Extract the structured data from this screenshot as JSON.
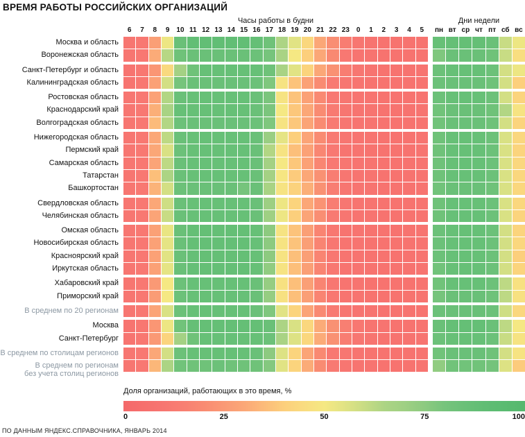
{
  "title": "ВРЕМЯ РАБОТЫ РОССИЙСКИХ ОРГАНИЗАЦИЙ",
  "header": {
    "hours_title": "Часы работы в будни",
    "days_title": "Дни недели"
  },
  "legend": {
    "title": "Доля организаций, работающих в это время, %",
    "ticks": {
      "t0": "0",
      "t25": "25",
      "t50": "50",
      "t75": "75",
      "t100": "100"
    }
  },
  "footer": "ПО ДАННЫМ ЯНДЕКС.СПРАВОЧНИКА, ЯНВАРЬ 2014",
  "chart_data": {
    "type": "heatmap",
    "unit": "%",
    "value_range": [
      0,
      100
    ],
    "hour_labels": [
      "6",
      "7",
      "8",
      "9",
      "10",
      "11",
      "12",
      "13",
      "14",
      "15",
      "16",
      "17",
      "18",
      "19",
      "20",
      "21",
      "22",
      "23",
      "0",
      "1",
      "2",
      "3",
      "4",
      "5"
    ],
    "day_labels": [
      "пн",
      "вт",
      "ср",
      "чт",
      "пт",
      "сб",
      "вс"
    ],
    "colorscale": {
      "min": 0,
      "max": 100,
      "anchors": [
        [
          0,
          "#f4696a"
        ],
        [
          12,
          "#f87872"
        ],
        [
          20,
          "#f98b72"
        ],
        [
          30,
          "#fba777"
        ],
        [
          40,
          "#fccf7c"
        ],
        [
          50,
          "#f5e883"
        ],
        [
          57,
          "#d9e184"
        ],
        [
          65,
          "#acd484"
        ],
        [
          72,
          "#9ace83"
        ],
        [
          80,
          "#76c47c"
        ],
        [
          88,
          "#62be75"
        ],
        [
          100,
          "#55b86e"
        ]
      ]
    },
    "rows": [
      {
        "label": "Москва и область",
        "muted": false,
        "group": 0,
        "hours": [
          10,
          12,
          27,
          52,
          85,
          88,
          88,
          88,
          88,
          88,
          87,
          83,
          65,
          55,
          43,
          30,
          21,
          14,
          10,
          9,
          8,
          8,
          8,
          9
        ],
        "days": [
          86,
          87,
          87,
          87,
          85,
          60,
          52
        ]
      },
      {
        "label": "Воронежская область",
        "muted": false,
        "group": 0,
        "hours": [
          10,
          12,
          31,
          63,
          83,
          85,
          85,
          85,
          85,
          85,
          84,
          80,
          66,
          50,
          40,
          30,
          19,
          12,
          9,
          9,
          8,
          8,
          8,
          9
        ],
        "days": [
          78,
          85,
          85,
          85,
          83,
          60,
          46
        ]
      },
      {
        "label": "Санкт-Петербург и область",
        "muted": false,
        "group": 1,
        "hours": [
          9,
          11,
          24,
          44,
          68,
          83,
          86,
          86,
          86,
          86,
          86,
          83,
          66,
          55,
          42,
          30,
          22,
          14,
          10,
          9,
          8,
          8,
          8,
          9
        ],
        "days": [
          84,
          86,
          86,
          86,
          84,
          58,
          52
        ]
      },
      {
        "label": "Калининградская область",
        "muted": false,
        "group": 1,
        "hours": [
          9,
          11,
          28,
          58,
          80,
          85,
          85,
          85,
          85,
          85,
          84,
          78,
          48,
          37,
          28,
          20,
          13,
          10,
          9,
          8,
          8,
          8,
          8,
          9
        ],
        "days": [
          84,
          85,
          85,
          85,
          83,
          58,
          40
        ]
      },
      {
        "label": "Ростовская область",
        "muted": false,
        "group": 2,
        "hours": [
          10,
          12,
          28,
          64,
          85,
          86,
          86,
          86,
          86,
          86,
          85,
          79,
          48,
          37,
          28,
          19,
          12,
          10,
          9,
          9,
          8,
          8,
          8,
          9
        ],
        "days": [
          84,
          86,
          86,
          86,
          84,
          58,
          42
        ]
      },
      {
        "label": "Краснодарский край",
        "muted": false,
        "group": 2,
        "hours": [
          10,
          12,
          32,
          66,
          86,
          86,
          86,
          86,
          86,
          86,
          85,
          79,
          50,
          38,
          30,
          20,
          13,
          10,
          9,
          9,
          8,
          8,
          8,
          9
        ],
        "days": [
          82,
          85,
          85,
          85,
          83,
          64,
          48
        ]
      },
      {
        "label": "Волгоградская область",
        "muted": false,
        "group": 2,
        "hours": [
          10,
          12,
          35,
          64,
          84,
          85,
          85,
          85,
          85,
          85,
          84,
          78,
          48,
          38,
          29,
          20,
          13,
          10,
          9,
          9,
          8,
          8,
          8,
          9
        ],
        "days": [
          82,
          85,
          85,
          85,
          83,
          58,
          42
        ]
      },
      {
        "label": "Нижегородская область",
        "muted": false,
        "group": 3,
        "hours": [
          10,
          12,
          30,
          62,
          85,
          86,
          86,
          86,
          86,
          86,
          85,
          72,
          54,
          40,
          29,
          20,
          13,
          10,
          9,
          9,
          8,
          8,
          8,
          9
        ],
        "days": [
          83,
          86,
          86,
          86,
          84,
          57,
          43
        ]
      },
      {
        "label": "Пермский край",
        "muted": false,
        "group": 3,
        "hours": [
          10,
          12,
          30,
          57,
          84,
          86,
          86,
          86,
          86,
          86,
          85,
          64,
          48,
          36,
          28,
          18,
          12,
          9,
          9,
          8,
          8,
          8,
          8,
          9
        ],
        "days": [
          83,
          86,
          86,
          86,
          84,
          57,
          42
        ]
      },
      {
        "label": "Самарская область",
        "muted": false,
        "group": 3,
        "hours": [
          10,
          12,
          29,
          62,
          85,
          86,
          86,
          86,
          86,
          86,
          85,
          68,
          50,
          38,
          28,
          18,
          12,
          10,
          9,
          9,
          8,
          8,
          8,
          9
        ],
        "days": [
          83,
          86,
          86,
          86,
          84,
          57,
          43
        ]
      },
      {
        "label": "Татарстан",
        "muted": false,
        "group": 3,
        "hours": [
          10,
          12,
          36,
          65,
          85,
          86,
          86,
          86,
          86,
          86,
          85,
          68,
          49,
          39,
          30,
          22,
          14,
          10,
          9,
          9,
          8,
          8,
          8,
          9
        ],
        "days": [
          83,
          86,
          86,
          86,
          84,
          57,
          43
        ]
      },
      {
        "label": "Башкортостан",
        "muted": false,
        "group": 3,
        "hours": [
          10,
          12,
          33,
          58,
          84,
          85,
          85,
          85,
          85,
          80,
          85,
          66,
          48,
          41,
          32,
          22,
          14,
          10,
          9,
          9,
          8,
          8,
          8,
          9
        ],
        "days": [
          82,
          85,
          85,
          85,
          83,
          57,
          43
        ]
      },
      {
        "label": "Свердловская область",
        "muted": false,
        "group": 4,
        "hours": [
          10,
          12,
          30,
          59,
          85,
          86,
          86,
          86,
          86,
          86,
          85,
          71,
          52,
          42,
          30,
          23,
          14,
          10,
          9,
          9,
          8,
          8,
          8,
          9
        ],
        "days": [
          83,
          86,
          86,
          86,
          84,
          57,
          43
        ]
      },
      {
        "label": "Челябинская область",
        "muted": false,
        "group": 4,
        "hours": [
          10,
          12,
          29,
          60,
          85,
          86,
          86,
          86,
          86,
          86,
          85,
          70,
          52,
          40,
          29,
          21,
          13,
          10,
          9,
          9,
          8,
          8,
          8,
          9
        ],
        "days": [
          83,
          86,
          86,
          86,
          84,
          57,
          42
        ]
      },
      {
        "label": "Омская область",
        "muted": false,
        "group": 5,
        "hours": [
          10,
          12,
          28,
          53,
          85,
          87,
          87,
          87,
          87,
          87,
          86,
          75,
          48,
          37,
          27,
          17,
          11,
          9,
          9,
          8,
          8,
          8,
          8,
          9
        ],
        "days": [
          84,
          86,
          86,
          86,
          84,
          58,
          42
        ]
      },
      {
        "label": "Новосибирская область",
        "muted": false,
        "group": 5,
        "hours": [
          10,
          12,
          28,
          54,
          85,
          87,
          87,
          87,
          87,
          87,
          86,
          75,
          48,
          37,
          27,
          17,
          11,
          9,
          9,
          8,
          8,
          8,
          8,
          9
        ],
        "days": [
          84,
          86,
          86,
          86,
          84,
          58,
          43
        ]
      },
      {
        "label": "Красноярский край",
        "muted": false,
        "group": 5,
        "hours": [
          10,
          12,
          28,
          55,
          85,
          87,
          87,
          87,
          87,
          87,
          86,
          75,
          48,
          36,
          27,
          17,
          11,
          9,
          9,
          8,
          8,
          8,
          8,
          9
        ],
        "days": [
          84,
          86,
          86,
          86,
          84,
          58,
          40
        ]
      },
      {
        "label": "Иркутская область",
        "muted": false,
        "group": 5,
        "hours": [
          10,
          12,
          28,
          54,
          85,
          87,
          87,
          87,
          87,
          87,
          86,
          74,
          48,
          36,
          27,
          17,
          11,
          9,
          9,
          8,
          8,
          8,
          8,
          9
        ],
        "days": [
          82,
          86,
          86,
          86,
          84,
          58,
          42
        ]
      },
      {
        "label": "Хабаровский край",
        "muted": false,
        "group": 6,
        "hours": [
          10,
          12,
          25,
          50,
          84,
          86,
          86,
          86,
          86,
          86,
          85,
          73,
          47,
          36,
          27,
          17,
          11,
          9,
          9,
          8,
          8,
          8,
          8,
          9
        ],
        "days": [
          82,
          86,
          86,
          86,
          84,
          62,
          47
        ]
      },
      {
        "label": "Приморский край",
        "muted": false,
        "group": 6,
        "hours": [
          10,
          12,
          26,
          50,
          84,
          86,
          86,
          86,
          86,
          86,
          85,
          73,
          47,
          36,
          27,
          17,
          11,
          9,
          9,
          8,
          8,
          8,
          8,
          9
        ],
        "days": [
          80,
          85,
          85,
          85,
          83,
          62,
          47
        ]
      },
      {
        "label": "В среднем по 20 регионам",
        "muted": true,
        "group": 7,
        "hours": [
          10,
          12,
          29,
          57,
          84,
          86,
          86,
          86,
          86,
          86,
          85,
          78,
          55,
          42,
          29,
          19,
          13,
          10,
          9,
          9,
          8,
          8,
          8,
          9
        ],
        "days": [
          84,
          85,
          85,
          85,
          84,
          59,
          43
        ]
      },
      {
        "label": "Москва",
        "muted": false,
        "group": 8,
        "hours": [
          9,
          11,
          24,
          52,
          82,
          87,
          87,
          87,
          87,
          87,
          87,
          85,
          65,
          57,
          43,
          31,
          22,
          15,
          11,
          9,
          9,
          8,
          8,
          9
        ],
        "days": [
          85,
          87,
          87,
          87,
          85,
          62,
          50
        ]
      },
      {
        "label": "Санкт-Петербург",
        "muted": false,
        "group": 8,
        "hours": [
          9,
          11,
          25,
          42,
          68,
          83,
          86,
          86,
          86,
          86,
          86,
          84,
          66,
          56,
          43,
          31,
          22,
          14,
          10,
          9,
          8,
          8,
          8,
          9
        ],
        "days": [
          84,
          86,
          86,
          86,
          84,
          60,
          48
        ]
      },
      {
        "label": "В среднем по столицам регионов",
        "muted": true,
        "group": 9,
        "hours": [
          10,
          12,
          30,
          58,
          84,
          86,
          86,
          86,
          86,
          86,
          85,
          75,
          56,
          42,
          29,
          19,
          12,
          10,
          9,
          9,
          8,
          8,
          8,
          9
        ],
        "days": [
          82,
          85,
          85,
          85,
          83,
          58,
          48
        ]
      },
      {
        "label": "В среднем по регионам\nбез учета столиц регионов",
        "muted": true,
        "group": 9,
        "hours": [
          10,
          12,
          34,
          65,
          82,
          83,
          83,
          84,
          83,
          83,
          83,
          77,
          55,
          42,
          31,
          20,
          13,
          10,
          9,
          9,
          8,
          8,
          8,
          9
        ],
        "days": [
          74,
          82,
          82,
          82,
          81,
          56,
          39
        ]
      }
    ]
  }
}
